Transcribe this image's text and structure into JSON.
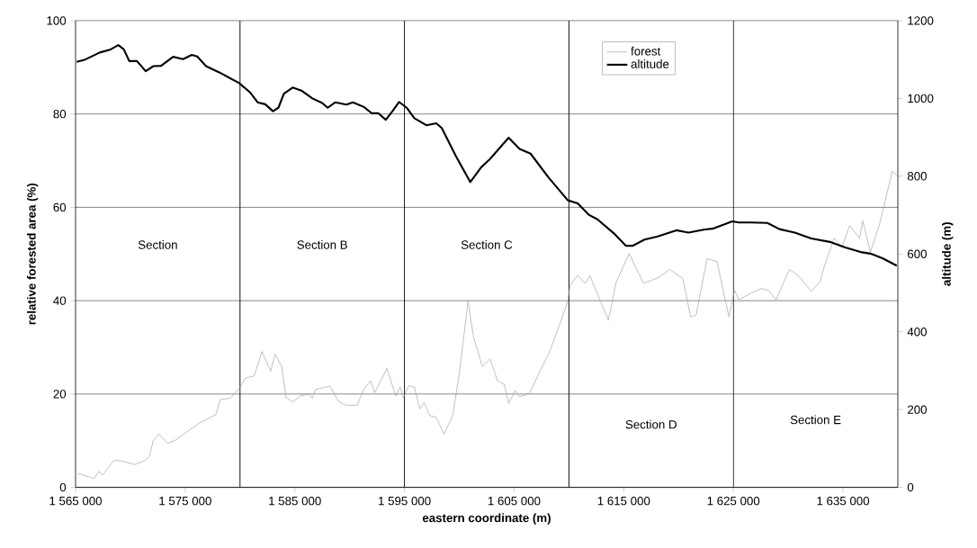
{
  "chart_data": {
    "type": "line",
    "xlabel": "eastern coordinate (m)",
    "ylabel": "relative forested area (%)",
    "y2label": "altitude (m)",
    "xlim": [
      1565000,
      1640000
    ],
    "xticks": [
      {
        "value": 1565000,
        "label": "1 565 000"
      },
      {
        "value": 1575000,
        "label": "1 575 000"
      },
      {
        "value": 1585000,
        "label": "1 585 000"
      },
      {
        "value": 1595000,
        "label": "1 595 000"
      },
      {
        "value": 1605000,
        "label": "1 605 000"
      },
      {
        "value": 1615000,
        "label": "1 615 000"
      },
      {
        "value": 1625000,
        "label": "1 625 000"
      },
      {
        "value": 1635000,
        "label": "1 635 000"
      }
    ],
    "ylim": [
      0,
      100
    ],
    "yticks": [
      0,
      20,
      40,
      60,
      80,
      100
    ],
    "y2lim": [
      0,
      1200
    ],
    "y2ticks": [
      0,
      200,
      400,
      600,
      800,
      1000,
      1200
    ],
    "grid": "y",
    "legend": "top",
    "series": [
      {
        "name": "forest",
        "color": "#a0a0a0",
        "x": [
          1565200,
          1566700,
          1567100,
          1567500,
          1568500,
          1569100,
          1570400,
          1571200,
          1571700,
          1572100,
          1572600,
          1573400,
          1574100,
          1575200,
          1576400,
          1577800,
          1578200,
          1579100,
          1579900,
          1580500,
          1581300,
          1582000,
          1582800,
          1583200,
          1583800,
          1584200,
          1584800,
          1585500,
          1586300,
          1586600,
          1586900,
          1588200,
          1589000,
          1589700,
          1590700,
          1591300,
          1591900,
          1592300,
          1592900,
          1593400,
          1594200,
          1594600,
          1594900,
          1595400,
          1595900,
          1596400,
          1596800,
          1597300,
          1597900,
          1598600,
          1599400,
          1600000,
          1600800,
          1601300,
          1602100,
          1602800,
          1603500,
          1604100,
          1604500,
          1605100,
          1605500,
          1606400,
          1607400,
          1608200,
          1609200,
          1609900,
          1610100,
          1610800,
          1611500,
          1611900,
          1613600,
          1614300,
          1615500,
          1616800,
          1618200,
          1619200,
          1620400,
          1621100,
          1621600,
          1622600,
          1623500,
          1624600,
          1625100,
          1625500,
          1626600,
          1627500,
          1628200,
          1628900,
          1630100,
          1630900,
          1632100,
          1632900,
          1633300,
          1634200,
          1634900,
          1635600,
          1636500,
          1636800,
          1637500,
          1638300,
          1639500,
          1639900
        ],
        "values": [
          3.0,
          1.9,
          3.4,
          2.7,
          5.8,
          5.7,
          4.9,
          5.6,
          6.5,
          10.1,
          11.4,
          9.4,
          10.1,
          12.0,
          13.9,
          15.6,
          18.8,
          19.1,
          21.1,
          23.4,
          23.9,
          29.1,
          24.9,
          28.5,
          25.9,
          19.2,
          18.3,
          19.6,
          20.0,
          19.1,
          21.0,
          21.7,
          18.4,
          17.6,
          17.6,
          21.1,
          22.8,
          20.3,
          23.1,
          25.5,
          19.6,
          21.5,
          19.2,
          21.8,
          21.5,
          16.8,
          18.2,
          15.4,
          15.0,
          11.4,
          15.4,
          24.4,
          39.9,
          32.2,
          25.9,
          27.5,
          22.8,
          22.1,
          18.0,
          20.7,
          19.4,
          20.1,
          25.1,
          28.8,
          35.2,
          39.9,
          43.3,
          45.4,
          43.7,
          45.4,
          35.8,
          43.9,
          50.1,
          43.7,
          45.0,
          46.7,
          44.7,
          36.5,
          36.9,
          49.0,
          48.4,
          36.5,
          42.2,
          40.2,
          41.6,
          42.6,
          42.2,
          40.2,
          46.7,
          45.4,
          42.0,
          44.0,
          47.4,
          53.4,
          51.4,
          56.1,
          53.4,
          57.1,
          50.4,
          56.1,
          67.8,
          66.8
        ]
      },
      {
        "name": "altitude",
        "color": "#000000",
        "axis": "y2",
        "x": [
          1565100,
          1565800,
          1567200,
          1568200,
          1568900,
          1569400,
          1569900,
          1570600,
          1571400,
          1572100,
          1572800,
          1573900,
          1574800,
          1575600,
          1576100,
          1576900,
          1578100,
          1579900,
          1580900,
          1581600,
          1582300,
          1583000,
          1583500,
          1584000,
          1584800,
          1585600,
          1586600,
          1587500,
          1588000,
          1588700,
          1589700,
          1590300,
          1591300,
          1592000,
          1592600,
          1593300,
          1593900,
          1594500,
          1595200,
          1595900,
          1597000,
          1597900,
          1598400,
          1599700,
          1601000,
          1602000,
          1602800,
          1604500,
          1605500,
          1606500,
          1608100,
          1609900,
          1610800,
          1611800,
          1612600,
          1614100,
          1615200,
          1615800,
          1616900,
          1618100,
          1619800,
          1620900,
          1622400,
          1623100,
          1624900,
          1625500,
          1626600,
          1628100,
          1629200,
          1630600,
          1632100,
          1633800,
          1635200,
          1636600,
          1637500,
          1638600,
          1639900
        ],
        "values": [
          1094,
          1099,
          1118,
          1126,
          1137,
          1126,
          1096,
          1096,
          1070,
          1083,
          1084,
          1107,
          1101,
          1112,
          1108,
          1083,
          1067,
          1040,
          1016,
          990,
          985,
          967,
          976,
          1012,
          1028,
          1020,
          1000,
          988,
          976,
          990,
          984,
          990,
          978,
          962,
          962,
          945,
          967,
          991,
          976,
          949,
          931,
          936,
          924,
          851,
          785,
          823,
          844,
          899,
          870,
          858,
          798,
          738,
          730,
          701,
          689,
          653,
          621,
          621,
          637,
          645,
          661,
          655,
          663,
          665,
          684,
          681,
          681,
          680,
          664,
          655,
          640,
          631,
          617,
          605,
          601,
          589,
          570
        ]
      }
    ],
    "ref_lines": [
      {
        "axis": "x",
        "value": 1580000,
        "color": "#000000"
      },
      {
        "axis": "x",
        "value": 1595000,
        "color": "#000000"
      },
      {
        "axis": "x",
        "value": 1610000,
        "color": "#000000"
      },
      {
        "axis": "x",
        "value": 1625000,
        "color": "#000000"
      }
    ],
    "annotations": [
      "Section",
      "Section B",
      "Section C",
      "Section D",
      "Section E"
    ]
  }
}
